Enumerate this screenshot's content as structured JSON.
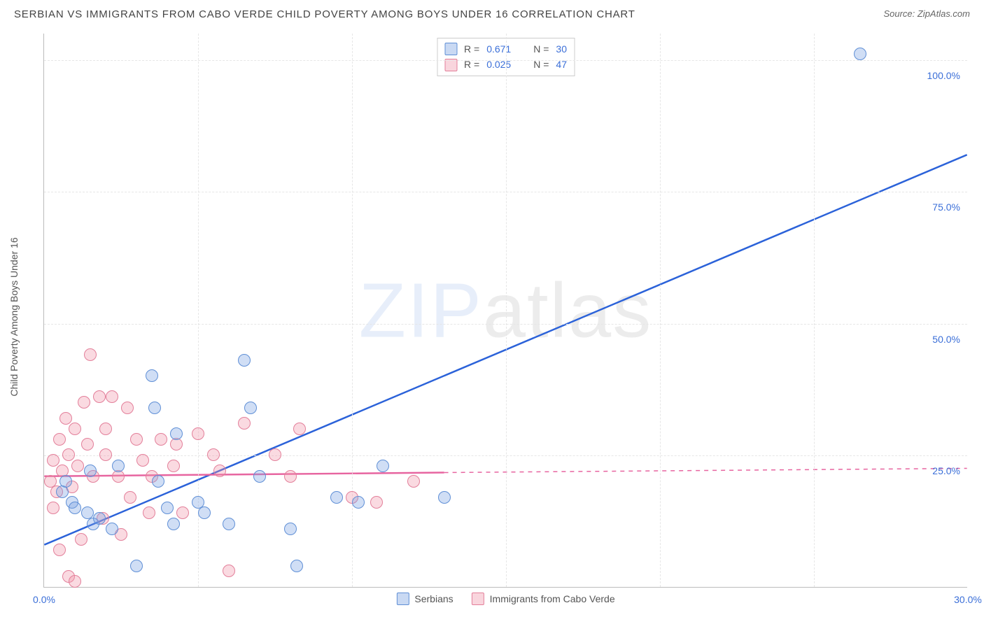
{
  "header": {
    "title": "SERBIAN VS IMMIGRANTS FROM CABO VERDE CHILD POVERTY AMONG BOYS UNDER 16 CORRELATION CHART",
    "source_prefix": "Source: ",
    "source_name": "ZipAtlas.com"
  },
  "axes": {
    "y_label": "Child Poverty Among Boys Under 16",
    "y_ticks": [
      {
        "v": 100.0,
        "label": "100.0%"
      },
      {
        "v": 75.0,
        "label": "75.0%"
      },
      {
        "v": 50.0,
        "label": "50.0%"
      },
      {
        "v": 25.0,
        "label": "25.0%"
      }
    ],
    "x_ticks": [
      {
        "v": 0.0,
        "label": "0.0%"
      },
      {
        "v": 30.0,
        "label": "30.0%"
      }
    ],
    "x_grid": [
      5,
      10,
      15,
      20,
      25
    ],
    "xlim": [
      0,
      30
    ],
    "ylim": [
      0,
      105
    ]
  },
  "watermark": {
    "bold": "ZIP",
    "tail": "atlas"
  },
  "legend_top": {
    "series": [
      {
        "swatch": "blue",
        "r_label": "R =",
        "r": "0.671",
        "n_label": "N =",
        "n": "30"
      },
      {
        "swatch": "pink",
        "r_label": "R =",
        "r": "0.025",
        "n_label": "N =",
        "n": "47"
      }
    ]
  },
  "legend_bottom": {
    "items": [
      {
        "swatch": "blue",
        "label": "Serbians"
      },
      {
        "swatch": "pink",
        "label": "Immigrants from Cabo Verde"
      }
    ]
  },
  "series": {
    "blue": {
      "color_fill": "rgba(120,160,225,0.35)",
      "color_stroke": "#5f8fd6",
      "trend_color": "#2b62d9",
      "trend": {
        "x1": 0,
        "y1": 8,
        "x2": 30,
        "y2": 82
      },
      "points": [
        {
          "x": 0.6,
          "y": 18
        },
        {
          "x": 0.7,
          "y": 20
        },
        {
          "x": 0.9,
          "y": 16
        },
        {
          "x": 1.0,
          "y": 15
        },
        {
          "x": 1.4,
          "y": 14
        },
        {
          "x": 1.5,
          "y": 22
        },
        {
          "x": 1.6,
          "y": 12
        },
        {
          "x": 1.8,
          "y": 13
        },
        {
          "x": 2.2,
          "y": 11
        },
        {
          "x": 2.4,
          "y": 23
        },
        {
          "x": 3.0,
          "y": 4
        },
        {
          "x": 3.5,
          "y": 40
        },
        {
          "x": 3.6,
          "y": 34
        },
        {
          "x": 3.7,
          "y": 20
        },
        {
          "x": 4.0,
          "y": 15
        },
        {
          "x": 4.2,
          "y": 12
        },
        {
          "x": 4.3,
          "y": 29
        },
        {
          "x": 5.0,
          "y": 16
        },
        {
          "x": 5.2,
          "y": 14
        },
        {
          "x": 6.0,
          "y": 12
        },
        {
          "x": 6.5,
          "y": 43
        },
        {
          "x": 6.7,
          "y": 34
        },
        {
          "x": 7.0,
          "y": 21
        },
        {
          "x": 8.0,
          "y": 11
        },
        {
          "x": 8.2,
          "y": 4
        },
        {
          "x": 9.5,
          "y": 17
        },
        {
          "x": 10.2,
          "y": 16
        },
        {
          "x": 11.0,
          "y": 23
        },
        {
          "x": 13.0,
          "y": 17
        },
        {
          "x": 26.5,
          "y": 101
        }
      ]
    },
    "pink": {
      "color_fill": "rgba(240,150,170,0.35)",
      "color_stroke": "#e37f9a",
      "trend_color": "#e765a0",
      "trend_solid": {
        "x1": 0,
        "y1": 21,
        "x2": 13,
        "y2": 21.7
      },
      "trend_dash": {
        "x1": 13,
        "y1": 21.7,
        "x2": 30,
        "y2": 22.5
      },
      "points": [
        {
          "x": 0.2,
          "y": 20
        },
        {
          "x": 0.3,
          "y": 15
        },
        {
          "x": 0.3,
          "y": 24
        },
        {
          "x": 0.4,
          "y": 18
        },
        {
          "x": 0.5,
          "y": 28
        },
        {
          "x": 0.5,
          "y": 7
        },
        {
          "x": 0.6,
          "y": 22
        },
        {
          "x": 0.7,
          "y": 32
        },
        {
          "x": 0.8,
          "y": 2
        },
        {
          "x": 0.8,
          "y": 25
        },
        {
          "x": 0.9,
          "y": 19
        },
        {
          "x": 1.0,
          "y": 30
        },
        {
          "x": 1.0,
          "y": 1
        },
        {
          "x": 1.1,
          "y": 23
        },
        {
          "x": 1.2,
          "y": 9
        },
        {
          "x": 1.3,
          "y": 35
        },
        {
          "x": 1.4,
          "y": 27
        },
        {
          "x": 1.5,
          "y": 44
        },
        {
          "x": 1.6,
          "y": 21
        },
        {
          "x": 1.8,
          "y": 36
        },
        {
          "x": 1.9,
          "y": 13
        },
        {
          "x": 2.0,
          "y": 30
        },
        {
          "x": 2.0,
          "y": 25
        },
        {
          "x": 2.2,
          "y": 36
        },
        {
          "x": 2.4,
          "y": 21
        },
        {
          "x": 2.5,
          "y": 10
        },
        {
          "x": 2.7,
          "y": 34
        },
        {
          "x": 2.8,
          "y": 17
        },
        {
          "x": 3.0,
          "y": 28
        },
        {
          "x": 3.2,
          "y": 24
        },
        {
          "x": 3.4,
          "y": 14
        },
        {
          "x": 3.5,
          "y": 21
        },
        {
          "x": 3.8,
          "y": 28
        },
        {
          "x": 4.2,
          "y": 23
        },
        {
          "x": 4.3,
          "y": 27
        },
        {
          "x": 4.5,
          "y": 14
        },
        {
          "x": 5.0,
          "y": 29
        },
        {
          "x": 5.5,
          "y": 25
        },
        {
          "x": 5.7,
          "y": 22
        },
        {
          "x": 6.0,
          "y": 3
        },
        {
          "x": 6.5,
          "y": 31
        },
        {
          "x": 7.5,
          "y": 25
        },
        {
          "x": 8.0,
          "y": 21
        },
        {
          "x": 8.3,
          "y": 30
        },
        {
          "x": 10.0,
          "y": 17
        },
        {
          "x": 10.8,
          "y": 16
        },
        {
          "x": 12.0,
          "y": 20
        }
      ]
    }
  }
}
